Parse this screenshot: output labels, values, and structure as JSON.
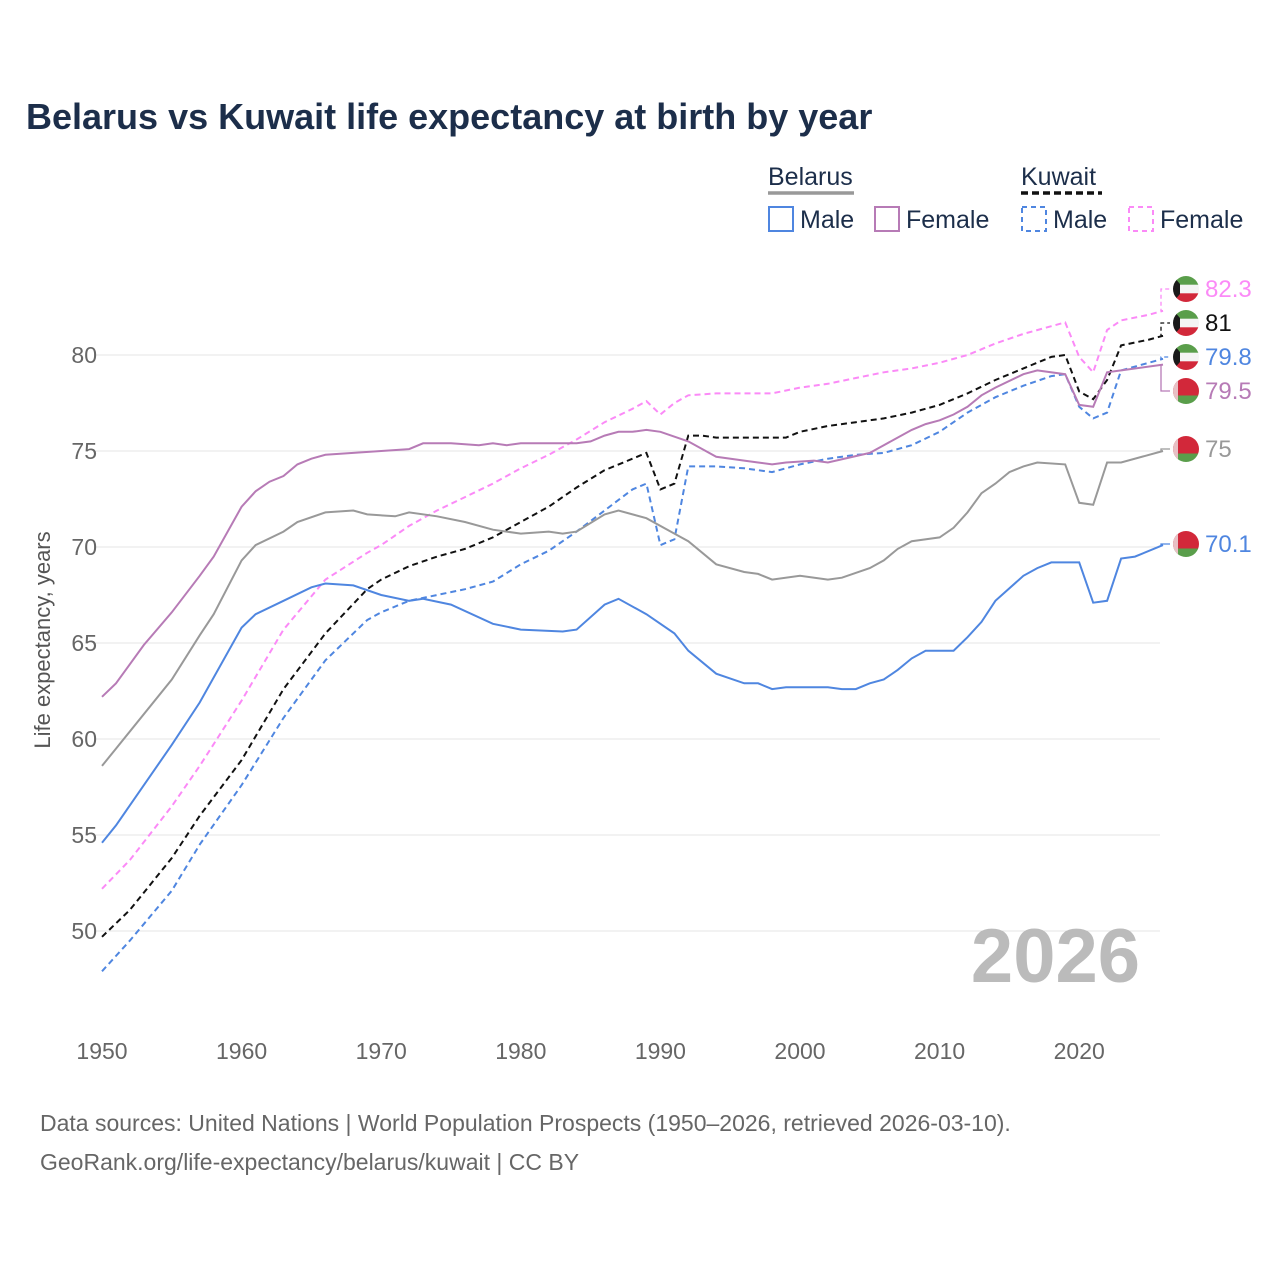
{
  "colors": {
    "belarus_total": "#999999",
    "belarus_male": "#4f86e0",
    "belarus_female": "#b77bb6",
    "kuwait_total": "#111111",
    "kuwait_male": "#4f86e0",
    "kuwait_female": "#fb8af7",
    "title": "#1c2e4a"
  },
  "chart_data": {
    "type": "line",
    "title": "Belarus vs Kuwait life expectancy at birth by year",
    "xlabel": "",
    "ylabel": "Life expectancy, years",
    "xlim": [
      1950,
      2026
    ],
    "ylim": [
      46,
      84
    ],
    "x_ticks": [
      1950,
      1960,
      1970,
      1980,
      1990,
      2000,
      2010,
      2020
    ],
    "y_ticks": [
      50,
      55,
      60,
      65,
      70,
      75,
      80
    ],
    "grid": "horizontal",
    "legend_position": "top-right",
    "legend": {
      "groups": [
        {
          "label": "Belarus",
          "items": [
            "Male",
            "Female"
          ]
        },
        {
          "label": "Kuwait",
          "items": [
            "Male",
            "Female"
          ]
        }
      ]
    },
    "year_annotation": "2026",
    "series": [
      {
        "name": "Kuwait Female",
        "key": "kuwait_female",
        "dashed": true,
        "flag": "kuwait",
        "end_label": "82.3",
        "points": [
          [
            1950,
            52.2
          ],
          [
            1952,
            53.7
          ],
          [
            1955,
            56.5
          ],
          [
            1957,
            58.6
          ],
          [
            1960,
            62.0
          ],
          [
            1963,
            65.7
          ],
          [
            1966,
            68.3
          ],
          [
            1969,
            69.7
          ],
          [
            1970,
            70.1
          ],
          [
            1972,
            71.1
          ],
          [
            1974,
            71.9
          ],
          [
            1976,
            72.6
          ],
          [
            1978,
            73.3
          ],
          [
            1980,
            74.1
          ],
          [
            1982,
            74.8
          ],
          [
            1984,
            75.6
          ],
          [
            1986,
            76.5
          ],
          [
            1988,
            77.2
          ],
          [
            1989,
            77.6
          ],
          [
            1990,
            76.9
          ],
          [
            1991,
            77.5
          ],
          [
            1992,
            77.9
          ],
          [
            1994,
            78.0
          ],
          [
            1998,
            78.0
          ],
          [
            2000,
            78.3
          ],
          [
            2002,
            78.5
          ],
          [
            2004,
            78.8
          ],
          [
            2006,
            79.1
          ],
          [
            2008,
            79.3
          ],
          [
            2010,
            79.6
          ],
          [
            2012,
            80.0
          ],
          [
            2014,
            80.6
          ],
          [
            2016,
            81.1
          ],
          [
            2018,
            81.5
          ],
          [
            2019,
            81.7
          ],
          [
            2020,
            79.9
          ],
          [
            2021,
            79.1
          ],
          [
            2022,
            81.3
          ],
          [
            2023,
            81.8
          ],
          [
            2025,
            82.1
          ],
          [
            2026,
            82.3
          ]
        ]
      },
      {
        "name": "Kuwait",
        "key": "kuwait_total",
        "dashed": true,
        "flag": "kuwait",
        "end_label": "81",
        "points": [
          [
            1950,
            49.7
          ],
          [
            1952,
            51.1
          ],
          [
            1955,
            53.8
          ],
          [
            1957,
            56.0
          ],
          [
            1960,
            58.9
          ],
          [
            1963,
            62.6
          ],
          [
            1966,
            65.5
          ],
          [
            1969,
            67.8
          ],
          [
            1970,
            68.3
          ],
          [
            1972,
            69.0
          ],
          [
            1974,
            69.5
          ],
          [
            1976,
            69.9
          ],
          [
            1978,
            70.5
          ],
          [
            1980,
            71.3
          ],
          [
            1982,
            72.1
          ],
          [
            1984,
            73.1
          ],
          [
            1986,
            74.0
          ],
          [
            1988,
            74.6
          ],
          [
            1989,
            74.9
          ],
          [
            1990,
            73.0
          ],
          [
            1991,
            73.3
          ],
          [
            1992,
            75.8
          ],
          [
            1993,
            75.8
          ],
          [
            1994,
            75.7
          ],
          [
            1999,
            75.7
          ],
          [
            2000,
            76.0
          ],
          [
            2002,
            76.3
          ],
          [
            2004,
            76.5
          ],
          [
            2006,
            76.7
          ],
          [
            2008,
            77.0
          ],
          [
            2010,
            77.4
          ],
          [
            2012,
            78.0
          ],
          [
            2014,
            78.7
          ],
          [
            2016,
            79.3
          ],
          [
            2018,
            79.9
          ],
          [
            2019,
            80.0
          ],
          [
            2020,
            78.1
          ],
          [
            2021,
            77.7
          ],
          [
            2022,
            78.7
          ],
          [
            2023,
            80.5
          ],
          [
            2025,
            80.8
          ],
          [
            2026,
            81.0
          ]
        ]
      },
      {
        "name": "Kuwait Male",
        "key": "kuwait_male",
        "dashed": true,
        "flag": "kuwait",
        "end_label": "79.8",
        "points": [
          [
            1950,
            47.9
          ],
          [
            1952,
            49.5
          ],
          [
            1955,
            52.1
          ],
          [
            1957,
            54.5
          ],
          [
            1960,
            57.6
          ],
          [
            1963,
            61.1
          ],
          [
            1966,
            64.1
          ],
          [
            1969,
            66.2
          ],
          [
            1970,
            66.6
          ],
          [
            1972,
            67.2
          ],
          [
            1974,
            67.5
          ],
          [
            1976,
            67.8
          ],
          [
            1978,
            68.2
          ],
          [
            1980,
            69.1
          ],
          [
            1982,
            69.8
          ],
          [
            1984,
            70.8
          ],
          [
            1986,
            71.9
          ],
          [
            1988,
            73.0
          ],
          [
            1989,
            73.3
          ],
          [
            1990,
            70.1
          ],
          [
            1991,
            70.4
          ],
          [
            1992,
            74.2
          ],
          [
            1994,
            74.2
          ],
          [
            1996,
            74.1
          ],
          [
            1998,
            73.9
          ],
          [
            2000,
            74.3
          ],
          [
            2002,
            74.6
          ],
          [
            2004,
            74.8
          ],
          [
            2006,
            74.9
          ],
          [
            2008,
            75.3
          ],
          [
            2010,
            76.0
          ],
          [
            2012,
            77.0
          ],
          [
            2014,
            77.8
          ],
          [
            2016,
            78.4
          ],
          [
            2018,
            78.9
          ],
          [
            2019,
            79.0
          ],
          [
            2020,
            77.3
          ],
          [
            2021,
            76.7
          ],
          [
            2022,
            77.0
          ],
          [
            2023,
            79.2
          ],
          [
            2025,
            79.6
          ],
          [
            2026,
            79.8
          ]
        ]
      },
      {
        "name": "Belarus Female",
        "key": "belarus_female",
        "dashed": false,
        "flag": "belarus",
        "end_label": "79.5",
        "points": [
          [
            1950,
            62.2
          ],
          [
            1951,
            62.9
          ],
          [
            1953,
            64.9
          ],
          [
            1955,
            66.6
          ],
          [
            1957,
            68.5
          ],
          [
            1958,
            69.5
          ],
          [
            1960,
            72.1
          ],
          [
            1961,
            72.9
          ],
          [
            1962,
            73.4
          ],
          [
            1963,
            73.7
          ],
          [
            1964,
            74.3
          ],
          [
            1965,
            74.6
          ],
          [
            1966,
            74.8
          ],
          [
            1968,
            74.9
          ],
          [
            1970,
            75.0
          ],
          [
            1972,
            75.1
          ],
          [
            1973,
            75.4
          ],
          [
            1975,
            75.4
          ],
          [
            1977,
            75.3
          ],
          [
            1978,
            75.4
          ],
          [
            1979,
            75.3
          ],
          [
            1980,
            75.4
          ],
          [
            1984,
            75.4
          ],
          [
            1985,
            75.5
          ],
          [
            1986,
            75.8
          ],
          [
            1987,
            76.0
          ],
          [
            1988,
            76.0
          ],
          [
            1989,
            76.1
          ],
          [
            1990,
            76.0
          ],
          [
            1992,
            75.5
          ],
          [
            1994,
            74.7
          ],
          [
            1996,
            74.5
          ],
          [
            1997,
            74.4
          ],
          [
            1998,
            74.3
          ],
          [
            1999,
            74.4
          ],
          [
            2001,
            74.5
          ],
          [
            2002,
            74.4
          ],
          [
            2005,
            74.9
          ],
          [
            2006,
            75.3
          ],
          [
            2008,
            76.1
          ],
          [
            2009,
            76.4
          ],
          [
            2010,
            76.6
          ],
          [
            2011,
            76.9
          ],
          [
            2012,
            77.3
          ],
          [
            2013,
            77.9
          ],
          [
            2014,
            78.3
          ],
          [
            2016,
            79.0
          ],
          [
            2017,
            79.2
          ],
          [
            2019,
            79.0
          ],
          [
            2020,
            77.4
          ],
          [
            2021,
            77.3
          ],
          [
            2022,
            79.1
          ],
          [
            2023,
            79.2
          ],
          [
            2026,
            79.5
          ]
        ]
      },
      {
        "name": "Belarus",
        "key": "belarus_total",
        "dashed": false,
        "flag": "belarus",
        "end_label": "75",
        "points": [
          [
            1950,
            58.6
          ],
          [
            1951,
            59.5
          ],
          [
            1955,
            63.1
          ],
          [
            1957,
            65.4
          ],
          [
            1958,
            66.5
          ],
          [
            1960,
            69.3
          ],
          [
            1961,
            70.1
          ],
          [
            1963,
            70.8
          ],
          [
            1964,
            71.3
          ],
          [
            1966,
            71.8
          ],
          [
            1968,
            71.9
          ],
          [
            1969,
            71.7
          ],
          [
            1971,
            71.6
          ],
          [
            1972,
            71.8
          ],
          [
            1974,
            71.6
          ],
          [
            1976,
            71.3
          ],
          [
            1978,
            70.9
          ],
          [
            1980,
            70.7
          ],
          [
            1982,
            70.8
          ],
          [
            1983,
            70.7
          ],
          [
            1984,
            70.8
          ],
          [
            1986,
            71.7
          ],
          [
            1987,
            71.9
          ],
          [
            1989,
            71.5
          ],
          [
            1991,
            70.7
          ],
          [
            1992,
            70.3
          ],
          [
            1994,
            69.1
          ],
          [
            1996,
            68.7
          ],
          [
            1997,
            68.6
          ],
          [
            1998,
            68.3
          ],
          [
            2000,
            68.5
          ],
          [
            2002,
            68.3
          ],
          [
            2003,
            68.4
          ],
          [
            2005,
            68.9
          ],
          [
            2006,
            69.3
          ],
          [
            2007,
            69.9
          ],
          [
            2008,
            70.3
          ],
          [
            2010,
            70.5
          ],
          [
            2011,
            71.0
          ],
          [
            2012,
            71.8
          ],
          [
            2013,
            72.8
          ],
          [
            2014,
            73.3
          ],
          [
            2015,
            73.9
          ],
          [
            2016,
            74.2
          ],
          [
            2017,
            74.4
          ],
          [
            2019,
            74.3
          ],
          [
            2020,
            72.3
          ],
          [
            2021,
            72.2
          ],
          [
            2022,
            74.4
          ],
          [
            2023,
            74.4
          ],
          [
            2026,
            75.0
          ]
        ]
      },
      {
        "name": "Belarus Male",
        "key": "belarus_male",
        "dashed": false,
        "flag": "belarus",
        "end_label": "70.1",
        "points": [
          [
            1950,
            54.6
          ],
          [
            1951,
            55.5
          ],
          [
            1955,
            59.7
          ],
          [
            1957,
            61.9
          ],
          [
            1960,
            65.8
          ],
          [
            1961,
            66.5
          ],
          [
            1963,
            67.2
          ],
          [
            1965,
            67.9
          ],
          [
            1966,
            68.1
          ],
          [
            1968,
            68.0
          ],
          [
            1970,
            67.5
          ],
          [
            1972,
            67.2
          ],
          [
            1973,
            67.3
          ],
          [
            1975,
            67.0
          ],
          [
            1978,
            66.0
          ],
          [
            1980,
            65.7
          ],
          [
            1983,
            65.6
          ],
          [
            1984,
            65.7
          ],
          [
            1986,
            67.0
          ],
          [
            1987,
            67.3
          ],
          [
            1989,
            66.5
          ],
          [
            1991,
            65.5
          ],
          [
            1992,
            64.6
          ],
          [
            1994,
            63.4
          ],
          [
            1996,
            62.9
          ],
          [
            1997,
            62.9
          ],
          [
            1998,
            62.6
          ],
          [
            1999,
            62.7
          ],
          [
            2002,
            62.7
          ],
          [
            2003,
            62.6
          ],
          [
            2004,
            62.6
          ],
          [
            2005,
            62.9
          ],
          [
            2006,
            63.1
          ],
          [
            2007,
            63.6
          ],
          [
            2008,
            64.2
          ],
          [
            2009,
            64.6
          ],
          [
            2011,
            64.6
          ],
          [
            2012,
            65.3
          ],
          [
            2013,
            66.1
          ],
          [
            2014,
            67.2
          ],
          [
            2016,
            68.5
          ],
          [
            2017,
            68.9
          ],
          [
            2018,
            69.2
          ],
          [
            2020,
            69.2
          ],
          [
            2021,
            67.1
          ],
          [
            2022,
            67.2
          ],
          [
            2023,
            69.4
          ],
          [
            2024,
            69.5
          ],
          [
            2026,
            70.1
          ]
        ]
      }
    ]
  },
  "footer": {
    "line1": "Data sources: United Nations | World Population Prospects (1950–2026, retrieved 2026-03-10).",
    "line2": "GeoRank.org/life-expectancy/belarus/kuwait | CC BY"
  }
}
